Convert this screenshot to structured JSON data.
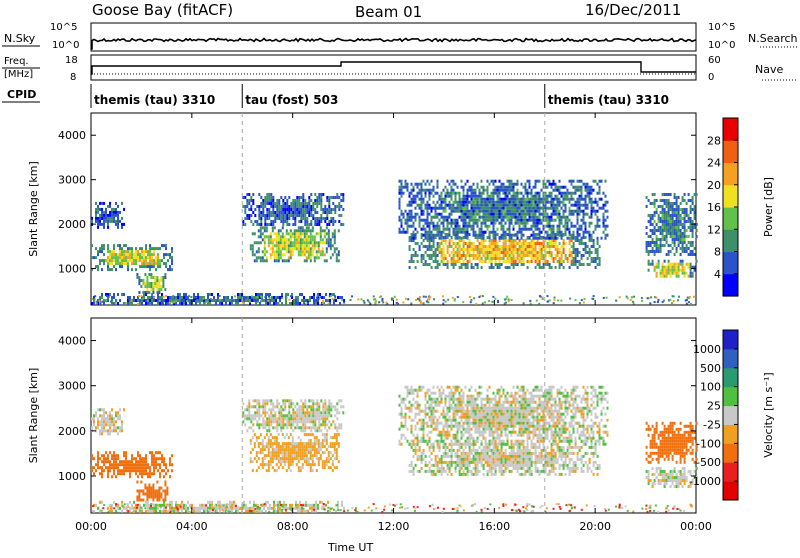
{
  "header": {
    "station": "Goose Bay (fitACF)",
    "beam": "Beam 01",
    "date": "16/Dec/2011"
  },
  "nsky_panel": {
    "left_label": "N.Sky",
    "left_ticks": [
      "10^5",
      "10^0"
    ],
    "right_label": "N.Search",
    "right_ticks": [
      "10^5",
      "10^0"
    ]
  },
  "freq_panel": {
    "left_label_1": "Freq.",
    "left_label_2": "[MHz]",
    "left_ticks": [
      "18",
      "8"
    ],
    "right_label": "Nave",
    "right_ticks": [
      "60",
      "0"
    ]
  },
  "cpid_panel": {
    "label": "CPID",
    "segments": [
      {
        "text": "themis (tau) 3310",
        "start_hour": 0
      },
      {
        "text": "tau (fost) 503",
        "start_hour": 6
      },
      {
        "text": "themis (tau) 3310",
        "start_hour": 18
      }
    ]
  },
  "chart_data": [
    {
      "type": "heatmap",
      "name": "power",
      "ylabel": "Slant Range [km]",
      "ylim": [
        180,
        4500
      ],
      "y_ticks": [
        1000,
        2000,
        3000,
        4000
      ],
      "x_ticks": [
        "00:00",
        "04:00",
        "08:00",
        "12:00",
        "16:00",
        "20:00",
        "00:00"
      ],
      "xlim_hours": [
        0,
        24
      ],
      "colorbar": {
        "label": "Power [dB]",
        "ticks": [
          "4",
          "8",
          "12",
          "16",
          "20",
          "24",
          "28"
        ],
        "colors": [
          "#0000ff",
          "#2a54c8",
          "#3f8f6a",
          "#62c14a",
          "#f0e020",
          "#f5a020",
          "#f06010",
          "#e80000"
        ]
      },
      "echo_regions": [
        {
          "t": [
            0.0,
            1.3
          ],
          "r": [
            1950,
            2500
          ],
          "v": 6
        },
        {
          "t": [
            0.0,
            3.2
          ],
          "r": [
            1000,
            1550
          ],
          "v": 18
        },
        {
          "t": [
            1.8,
            3.0
          ],
          "r": [
            450,
            900
          ],
          "v": 16
        },
        {
          "t": [
            6.0,
            10.0
          ],
          "r": [
            2000,
            2700
          ],
          "v": 7
        },
        {
          "t": [
            6.3,
            9.8
          ],
          "r": [
            1150,
            1950
          ],
          "v": 16
        },
        {
          "t": [
            0.0,
            10.0
          ],
          "r": [
            200,
            450
          ],
          "v": 7
        },
        {
          "t": [
            12.6,
            20.2
          ],
          "r": [
            1050,
            1800
          ],
          "v": 20
        },
        {
          "t": [
            12.2,
            20.5
          ],
          "r": [
            1700,
            3000
          ],
          "v": 8
        },
        {
          "t": [
            22.0,
            24.0
          ],
          "r": [
            800,
            1200
          ],
          "v": 18
        },
        {
          "t": [
            22.0,
            24.0
          ],
          "r": [
            1300,
            2700
          ],
          "v": 9
        }
      ]
    },
    {
      "type": "heatmap",
      "name": "velocity",
      "ylabel": "Slant Range [km]",
      "ylim": [
        180,
        4500
      ],
      "y_ticks": [
        1000,
        2000,
        3000,
        4000
      ],
      "x_ticks": [
        "00:00",
        "04:00",
        "08:00",
        "12:00",
        "16:00",
        "20:00",
        "00:00"
      ],
      "xlim_hours": [
        0,
        24
      ],
      "xlabel": "Time UT",
      "colorbar": {
        "label": "Velocity [m s⁻¹]",
        "ticks": [
          "1000",
          "500",
          "100",
          "25",
          "-25",
          "-100",
          "-500",
          "-1000"
        ],
        "colors": [
          "#2020c8",
          "#3060c0",
          "#2a9a70",
          "#50c040",
          "#c8c8c8",
          "#f0a020",
          "#f07010",
          "#e82020",
          "#e00000"
        ]
      },
      "echo_regions": [
        {
          "t": [
            0.0,
            1.3
          ],
          "r": [
            1950,
            2500
          ],
          "v": -10
        },
        {
          "t": [
            0.0,
            3.2
          ],
          "r": [
            1000,
            1550
          ],
          "v": -150
        },
        {
          "t": [
            1.8,
            3.0
          ],
          "r": [
            450,
            900
          ],
          "v": -200
        },
        {
          "t": [
            6.0,
            10.0
          ],
          "r": [
            2000,
            2700
          ],
          "v": 0
        },
        {
          "t": [
            6.3,
            9.8
          ],
          "r": [
            1150,
            1950
          ],
          "v": -40
        },
        {
          "t": [
            0.0,
            10.0
          ],
          "r": [
            200,
            450
          ],
          "v": 0
        },
        {
          "t": [
            12.6,
            20.2
          ],
          "r": [
            1050,
            1800
          ],
          "v": 0
        },
        {
          "t": [
            12.2,
            20.5
          ],
          "r": [
            1700,
            3000
          ],
          "v": 0
        },
        {
          "t": [
            22.0,
            24.0
          ],
          "r": [
            800,
            1200
          ],
          "v": 5
        },
        {
          "t": [
            22.0,
            24.0
          ],
          "r": [
            1300,
            2200
          ],
          "v": -150
        }
      ]
    }
  ]
}
